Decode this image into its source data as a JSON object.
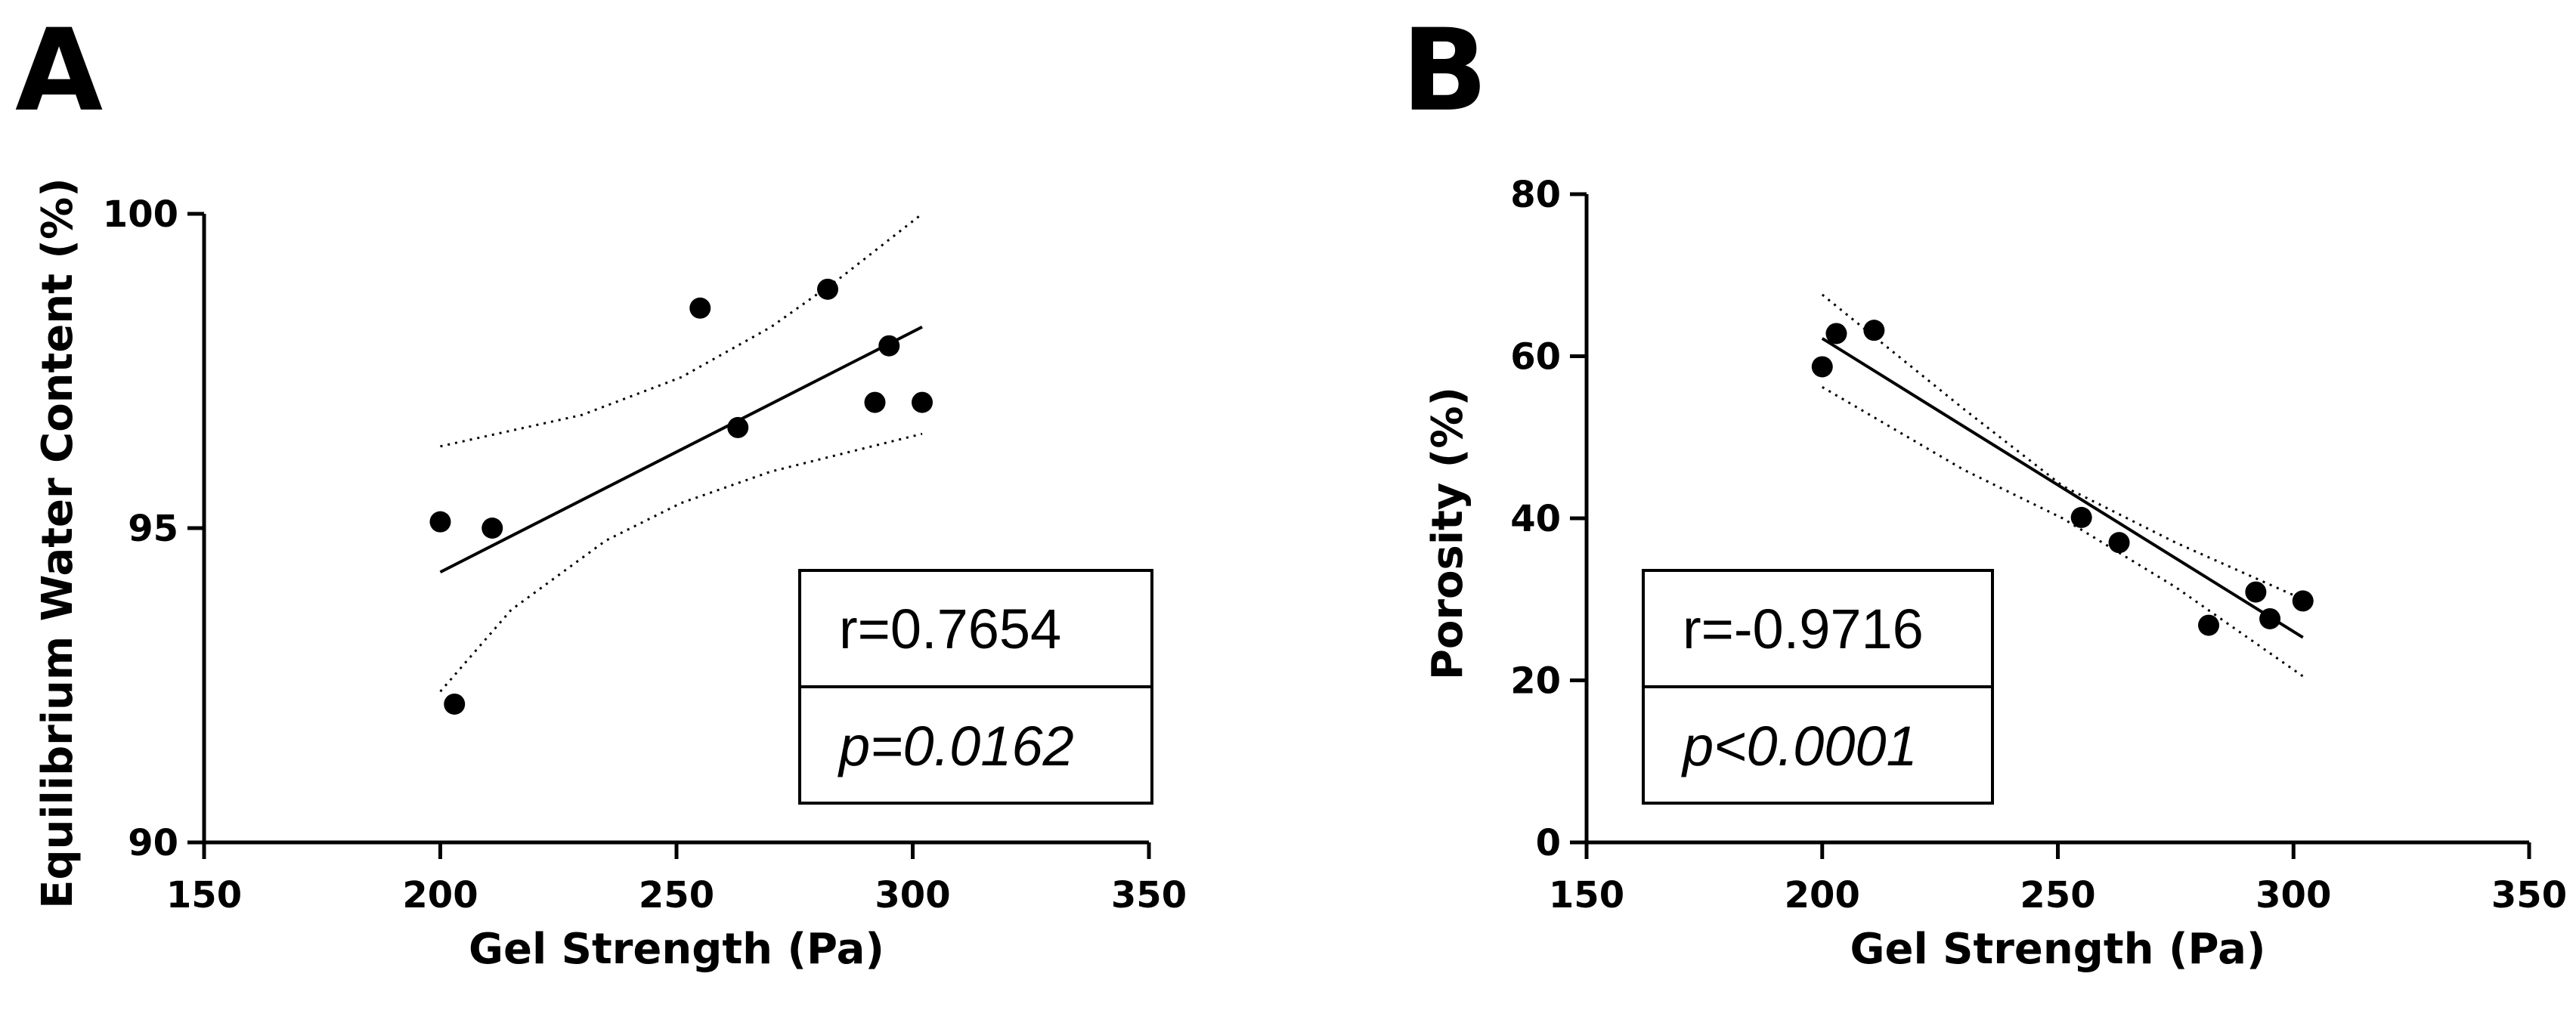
{
  "chart_data": [
    {
      "panel": "A",
      "type": "scatter",
      "xlabel": "Gel Strength (Pa)",
      "ylabel": "Equilibrium Water Content (%)",
      "xlim": [
        150,
        350
      ],
      "ylim": [
        90,
        100
      ],
      "xticks": [
        150,
        200,
        250,
        300,
        350
      ],
      "yticks": [
        90,
        95,
        100
      ],
      "points": [
        {
          "x": 200,
          "y": 95.1
        },
        {
          "x": 203,
          "y": 92.2
        },
        {
          "x": 211,
          "y": 95.0
        },
        {
          "x": 255,
          "y": 98.5
        },
        {
          "x": 263,
          "y": 96.6
        },
        {
          "x": 282,
          "y": 98.8
        },
        {
          "x": 292,
          "y": 97.0
        },
        {
          "x": 295,
          "y": 97.9
        },
        {
          "x": 302,
          "y": 97.0
        }
      ],
      "fit_line": [
        {
          "x": 200,
          "y": 94.3
        },
        {
          "x": 302,
          "y": 98.2
        }
      ],
      "ci_upper": [
        {
          "x": 200,
          "y": 96.3
        },
        {
          "x": 230,
          "y": 96.8
        },
        {
          "x": 251,
          "y": 97.4
        },
        {
          "x": 270,
          "y": 98.2
        },
        {
          "x": 285,
          "y": 99.0
        },
        {
          "x": 302,
          "y": 100.0
        }
      ],
      "ci_lower": [
        {
          "x": 200,
          "y": 92.4
        },
        {
          "x": 215,
          "y": 93.7
        },
        {
          "x": 235,
          "y": 94.8
        },
        {
          "x": 251,
          "y": 95.4
        },
        {
          "x": 270,
          "y": 95.9
        },
        {
          "x": 302,
          "y": 96.5
        }
      ],
      "stats": {
        "r": "r=0.7654",
        "p": "p=0.0162"
      },
      "stats_position": "bottom-right",
      "grid": false,
      "colors": {
        "points": "#000000",
        "line": "#000000"
      }
    },
    {
      "panel": "B",
      "type": "scatter",
      "xlabel": "Gel Strength (Pa)",
      "ylabel": "Porosity (%)",
      "xlim": [
        150,
        350
      ],
      "ylim": [
        0,
        80
      ],
      "xticks": [
        150,
        200,
        250,
        300,
        350
      ],
      "yticks": [
        0,
        20,
        40,
        60,
        80
      ],
      "points": [
        {
          "x": 200,
          "y": 58.7
        },
        {
          "x": 203,
          "y": 62.8
        },
        {
          "x": 211,
          "y": 63.2
        },
        {
          "x": 255,
          "y": 40.1
        },
        {
          "x": 263,
          "y": 37.0
        },
        {
          "x": 282,
          "y": 26.8
        },
        {
          "x": 292,
          "y": 30.9
        },
        {
          "x": 295,
          "y": 27.6
        },
        {
          "x": 302,
          "y": 29.8
        }
      ],
      "fit_line": [
        {
          "x": 200,
          "y": 62.2
        },
        {
          "x": 302,
          "y": 25.3
        }
      ],
      "ci_upper": [
        {
          "x": 200,
          "y": 67.6
        },
        {
          "x": 230,
          "y": 53.5
        },
        {
          "x": 251,
          "y": 44.0
        },
        {
          "x": 275,
          "y": 37.0
        },
        {
          "x": 302,
          "y": 30.0
        }
      ],
      "ci_lower": [
        {
          "x": 200,
          "y": 56.2
        },
        {
          "x": 230,
          "y": 46.0
        },
        {
          "x": 251,
          "y": 40.0
        },
        {
          "x": 275,
          "y": 31.5
        },
        {
          "x": 302,
          "y": 20.5
        }
      ],
      "stats": {
        "r": "r=-0.9716",
        "p": "p<0.0001"
      },
      "stats_position": "bottom-left",
      "grid": false,
      "colors": {
        "points": "#000000",
        "line": "#000000"
      }
    }
  ]
}
